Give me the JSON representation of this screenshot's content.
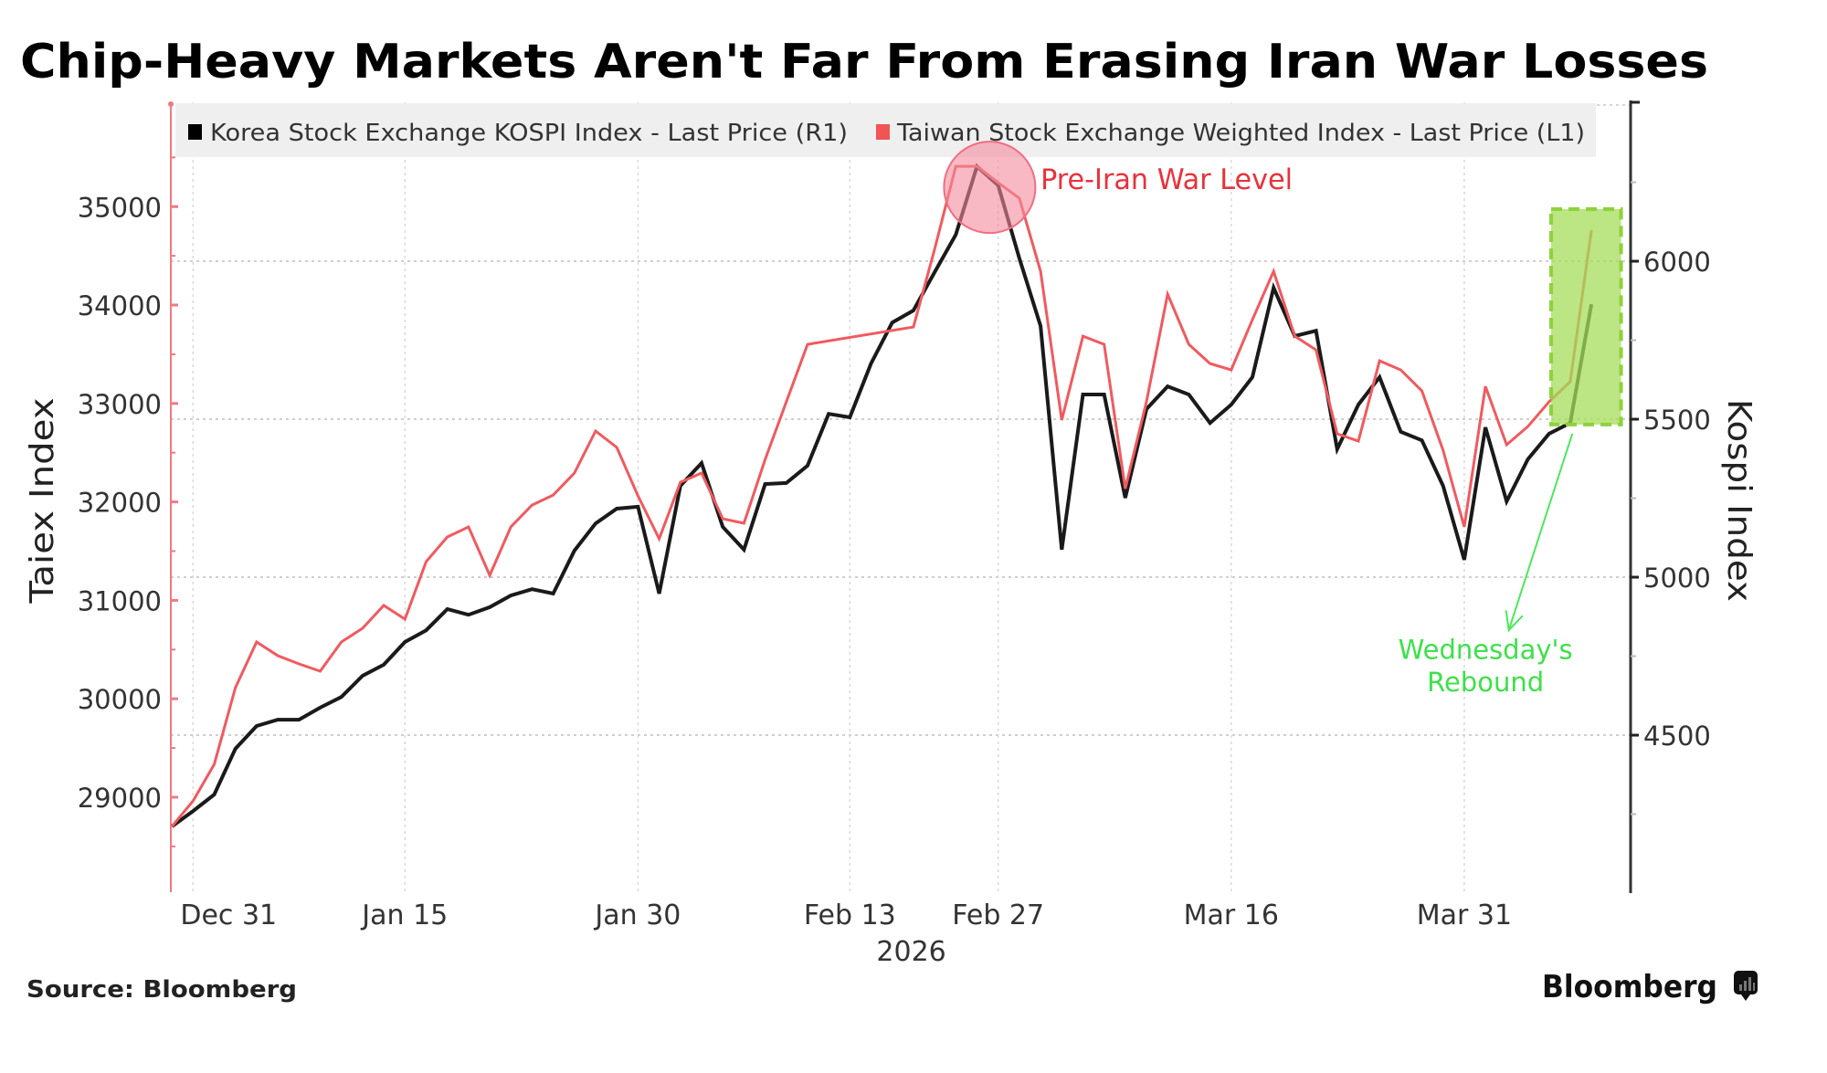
{
  "chart_data": {
    "type": "line",
    "title": "Chip-Heavy Markets Aren't Far From Erasing Iran War Losses",
    "source": "Source: Bloomberg",
    "brand": "Bloomberg",
    "x_axis": {
      "unit": "trading-day index (0 = Dec 30, 2025)",
      "range": [
        -0.05,
        68.85
      ],
      "ticks": [
        {
          "label": "Dec 31",
          "index": 1,
          "label_offset_index": 1.6
        },
        {
          "label": "Jan 15",
          "index": 11
        },
        {
          "label": "Jan 30",
          "index": 22
        },
        {
          "label": "Feb 13",
          "index": 32
        },
        {
          "label": "Feb 27",
          "index": 39
        },
        {
          "label": "Mar 16",
          "index": 50
        },
        {
          "label": "Mar 31",
          "index": 61
        }
      ],
      "year_label": "2026",
      "year_label_index": 34.9
    },
    "y_left": {
      "label": "Taiex Index",
      "range": [
        28035,
        36060
      ],
      "ticks": [
        29000,
        30000,
        31000,
        32000,
        33000,
        34000,
        35000
      ],
      "minor_ticks": [
        28500,
        29500,
        30500,
        31500,
        32500,
        33500,
        34500,
        35500
      ],
      "color": "#f07a82"
    },
    "y_right": {
      "label": "Kospi Index",
      "range": [
        4003,
        6503
      ],
      "ticks": [
        4500,
        5000,
        5500,
        6000
      ],
      "minor_ticks": [
        4250,
        4750,
        5250,
        5750,
        6250
      ],
      "gridlines": [
        4500,
        5000,
        5500,
        6000
      ],
      "color": "#222222"
    },
    "legend": {
      "placement": "top",
      "entries": [
        {
          "name": "Korea Stock Exchange KOSPI Index - Last Price (R1)",
          "color": "#000000"
        },
        {
          "name": "Taiwan Stock Exchange Weighted Index - Last Price (L1)",
          "color": "#f05454"
        }
      ]
    },
    "series": [
      {
        "name": "Korea Stock Exchange KOSPI Index - Last Price (R1)",
        "axis": "right",
        "color": "#1a1a1a",
        "values": [
          4211,
          4260,
          4312,
          4457,
          4529,
          4549,
          4549,
          4587,
          4621,
          4688,
          4723,
          4795,
          4832,
          4899,
          4881,
          4905,
          4942,
          4962,
          4948,
          5084,
          5170,
          5217,
          5223,
          4948,
          5289,
          5361,
          5159,
          5087,
          5295,
          5298,
          5353,
          5517,
          5506,
          5676,
          5806,
          5844,
          5965,
          6084,
          6300,
          6240,
          6009,
          5795,
          5087,
          5578,
          5578,
          5251,
          5532,
          5604,
          5578,
          5488,
          5546,
          5633,
          5916,
          5763,
          5780,
          5405,
          5546,
          5633,
          5460,
          5433,
          5289,
          5055,
          5474,
          5240,
          5373,
          5454,
          5488,
          5864
        ]
      },
      {
        "name": "Taiwan Stock Exchange Weighted Index - Last Price (L1)",
        "axis": "left",
        "color": "#f05a5f",
        "values": [
          28703,
          28963,
          29334,
          30113,
          30577,
          30438,
          30354,
          30280,
          30577,
          30716,
          30948,
          30809,
          31393,
          31644,
          31746,
          31254,
          31746,
          31968,
          32070,
          32293,
          32720,
          32553,
          32061,
          31625,
          32200,
          32293,
          31829,
          31783,
          32432,
          33017,
          33601,
          null,
          null,
          null,
          null,
          33777,
          34566,
          35410,
          35410,
          35243,
          35085,
          34343,
          32831,
          33684,
          33601,
          32135,
          33017,
          34111,
          33601,
          33406,
          33341,
          33851,
          34343,
          33684,
          33545,
          32692,
          32618,
          33434,
          33341,
          33128,
          32525,
          31746,
          33174,
          32581,
          32766,
          33017,
          33221,
          34760
        ]
      }
    ],
    "annotations": [
      {
        "type": "circle",
        "label": "Pre-Iran War Level",
        "center_index": 38.6,
        "center_value_left": 35196,
        "text_index": 41.0,
        "text_value_left": 35280,
        "fill": "#f48a9c",
        "stroke": "#f26d82",
        "text_color": "#e8323c"
      },
      {
        "type": "highlight-box",
        "index_range": [
          65.1,
          68.4
        ],
        "value_range_right": [
          5483,
          6165
        ],
        "fill": "#a6dc5a",
        "stroke": "#8fd13a"
      },
      {
        "type": "arrow",
        "from_index": 66.1,
        "from_value_right": 5454,
        "to_index": 63.1,
        "to_value_right": 4832,
        "color": "#4be85a"
      },
      {
        "type": "text",
        "lines": [
          "Wednesday's",
          "Rebound"
        ],
        "text_index": 62.0,
        "text_value_right": [
          4770,
          4668
        ],
        "color": "#3ee04a"
      }
    ]
  }
}
